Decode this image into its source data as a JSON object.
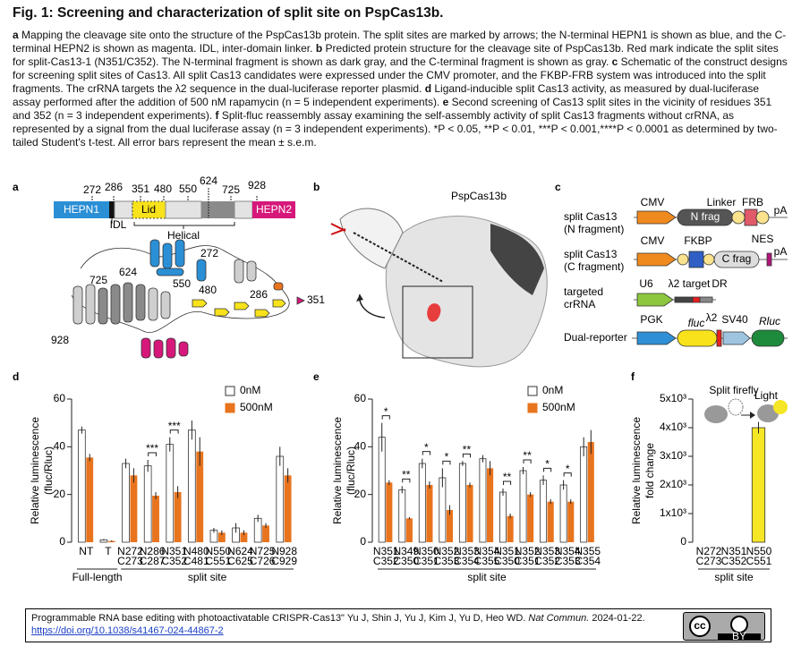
{
  "title": "Fig. 1: Screening and characterization of split site on PspCas13b.",
  "caption": [
    {
      "label": "a",
      "text": "Mapping the cleavage site onto the structure of the PspCas13b protein. The split sites are marked by arrows; the N-terminal HEPN1 is shown as blue, and the C-terminal HEPN2 is shown as magenta. IDL, inter-domain linker."
    },
    {
      "label": "b",
      "text": "Predicted protein structure for the cleavage site of PspCas13b. Red mark indicate the split sites for split-Cas13-1 (N351/C352). The N-terminal fragment is shown as dark gray, and the C-terminal fragment is shown as gray."
    },
    {
      "label": "c",
      "text": "Schematic of the construct designs for screening split sites of Cas13. All split Cas13 candidates were expressed under the CMV promoter, and the FKBP-FRB system was introduced into the split fragments. The crRNA targets the λ2 sequence in the dual-luciferase reporter plasmid."
    },
    {
      "label": "d",
      "text": "Ligand-inducible split Cas13 activity, as measured by dual-luciferase assay performed after the addition of 500 nM rapamycin (n = 5 independent experiments)."
    },
    {
      "label": "e",
      "text": "Second screening of Cas13 split sites in the vicinity of residues 351 and 352 (n = 3 independent experiments)."
    },
    {
      "label": "f",
      "text": "Split-fluc reassembly assay examining the self-assembly activity of split Cas13 fragments without crRNA, as represented by a signal from the dual luciferase assay (n = 3 independent experiments). *P < 0.05, **P < 0.01, ***P < 0.001,****P < 0.0001 as determined by two-tailed Student's t-test. All error bars represent the mean ± s.e.m."
    }
  ],
  "panel_a": {
    "letter": "a",
    "domains": [
      "HEPN1",
      "Lid",
      "HEPN2"
    ],
    "linker": "IDL",
    "helical": "Helical",
    "sites": [
      "272",
      "286",
      "351",
      "480",
      "550",
      "624",
      "725",
      "928"
    ],
    "structure_sites": [
      "725",
      "624",
      "272",
      "550",
      "480",
      "286",
      "351",
      "928"
    ]
  },
  "panel_b": {
    "letter": "b",
    "label": "PspCas13b"
  },
  "panel_c": {
    "letter": "c",
    "rows": [
      {
        "label": [
          "split Cas13",
          "(N fragment)"
        ],
        "parts": [
          "CMV",
          "N frag",
          "Linker",
          "FRB",
          "pA"
        ]
      },
      {
        "label": [
          "split Cas13",
          "(C fragment)"
        ],
        "parts": [
          "CMV",
          "FKBP",
          "C frag",
          "NES",
          "pA"
        ]
      },
      {
        "label": [
          "targeted",
          "crRNA"
        ],
        "parts": [
          "U6",
          "λ2 target",
          "DR"
        ]
      },
      {
        "label": [
          "Dual-reporter"
        ],
        "parts": [
          "PGK",
          "fluc",
          "λ2",
          "SV40",
          "Rluc"
        ]
      }
    ]
  },
  "chart_data": [
    {
      "type": "bar",
      "letter": "d",
      "ylabel": [
        "Relative luminescence",
        "(fluc/Rluc)"
      ],
      "categories": [
        [
          "NT"
        ],
        [
          "T"
        ],
        [
          "N272",
          "C273"
        ],
        [
          "N286",
          "C287"
        ],
        [
          "N351",
          "C352"
        ],
        [
          "N480",
          "C481"
        ],
        [
          "N550",
          "C551"
        ],
        [
          "N624",
          "C625"
        ],
        [
          "N725",
          "C726"
        ],
        [
          "N928",
          "C929"
        ]
      ],
      "series": [
        {
          "name": "0nM",
          "color": "#ffffff",
          "edgecolor": "#333333",
          "values": [
            47,
            1,
            33,
            32,
            41,
            47,
            5,
            6,
            10,
            36
          ],
          "errors": [
            1.5,
            0.3,
            2,
            2.5,
            3,
            4,
            1,
            2,
            1.5,
            4
          ]
        },
        {
          "name": "500nM",
          "color": "#e8741e",
          "values": [
            35.5,
            0.5,
            28,
            19.5,
            21,
            38,
            4,
            4,
            7,
            28
          ],
          "errors": [
            1.5,
            0.3,
            3,
            1.5,
            2.5,
            6,
            1,
            1,
            1,
            3
          ]
        }
      ],
      "significance": [
        null,
        null,
        null,
        "***",
        "***",
        null,
        null,
        null,
        null,
        null
      ],
      "groups": [
        {
          "label": "Full-length",
          "span": [
            0,
            1
          ]
        },
        {
          "label": "split site",
          "span": [
            2,
            9
          ]
        }
      ],
      "ylim": [
        0,
        60
      ],
      "yticks": [
        0,
        20,
        40,
        60
      ]
    },
    {
      "type": "bar",
      "letter": "e",
      "ylabel": [
        "Relative luminescence",
        "(fluc/Rluc)"
      ],
      "categories": [
        [
          "N351",
          "C352"
        ],
        [
          "N349",
          "C350"
        ],
        [
          "N350",
          "C351"
        ],
        [
          "N352",
          "C353"
        ],
        [
          "N353",
          "C354"
        ],
        [
          "N354",
          "C355"
        ],
        [
          "N351",
          "C350"
        ],
        [
          "N352",
          "C351"
        ],
        [
          "N353",
          "C352"
        ],
        [
          "N354",
          "C353"
        ],
        [
          "N355",
          "C354"
        ]
      ],
      "series": [
        {
          "name": "0nM",
          "color": "#ffffff",
          "edgecolor": "#333333",
          "values": [
            44,
            22,
            33,
            27,
            33,
            35,
            21,
            30,
            26,
            24,
            40
          ],
          "errors": [
            6,
            1.5,
            2,
            4,
            1,
            1.5,
            1.5,
            1.5,
            2,
            2,
            4
          ]
        },
        {
          "name": "500nM",
          "color": "#e8741e",
          "values": [
            25,
            10,
            24,
            13.5,
            24,
            31,
            11,
            20,
            17,
            17,
            42
          ],
          "errors": [
            1,
            0.5,
            1.5,
            2,
            1,
            3,
            1,
            1,
            1,
            1,
            5
          ]
        }
      ],
      "significance": [
        "*",
        "**",
        "*",
        "*",
        "**",
        null,
        "**",
        "**",
        "*",
        "*",
        null
      ],
      "groups": [
        {
          "label": "split site",
          "span": [
            0,
            10
          ]
        }
      ],
      "ylim": [
        0,
        60
      ],
      "yticks": [
        0,
        20,
        40,
        60
      ]
    },
    {
      "type": "bar",
      "letter": "f",
      "ylabel": [
        "Relative luminescence",
        "fold change"
      ],
      "categories": [
        [
          "N272",
          "C273"
        ],
        [
          "N351",
          "C352"
        ],
        [
          "N550",
          "C551"
        ]
      ],
      "values": [
        0,
        0,
        4000
      ],
      "errors": [
        0,
        0,
        200
      ],
      "color": "#f5e626",
      "edgecolor": "#333333",
      "groups": [
        {
          "label": "split site",
          "span": [
            0,
            2
          ]
        }
      ],
      "annotations": [
        "Split firefly",
        "Light"
      ],
      "ylim": [
        0,
        5000
      ],
      "yticks": [
        0,
        {
          "value": 1000,
          "label": "1x10³"
        },
        {
          "value": 2000,
          "label": "2x10³"
        },
        {
          "value": 3000,
          "label": "3x10³"
        },
        {
          "value": 4000,
          "label": "4x10³"
        },
        {
          "value": 5000,
          "label": "5x10³"
        }
      ]
    }
  ],
  "citation": {
    "text": "Programmable RNA base editing with photoactivatable CRISPR-Cas13\" Yu J, Shin J, Yu J, Kim J, Yu D, Heo WD.",
    "journal": "Nat Commun.",
    "date": "2024-01-22.",
    "doi": "https://doi.org/10.1038/s41467-024-44867-2"
  },
  "license": [
    "cc",
    "BY"
  ]
}
